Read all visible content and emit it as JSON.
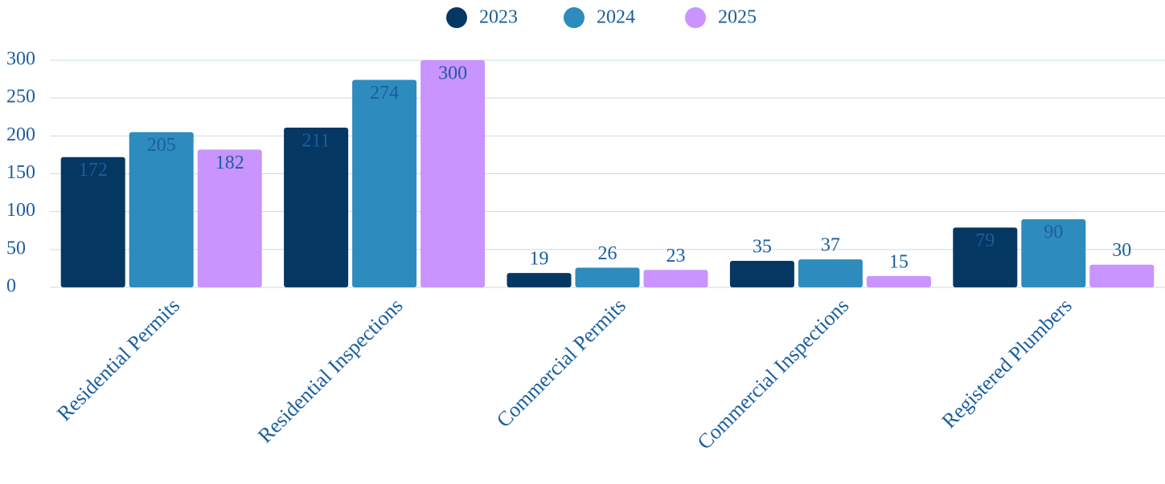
{
  "chart_data": {
    "type": "bar",
    "categories": [
      "Residential Permits",
      "Residential Inspections",
      "Commercial Permits",
      "Commercial Inspections",
      "Registered Plumbers"
    ],
    "series": [
      {
        "name": "2023",
        "color": "#053763",
        "values": [
          172,
          211,
          19,
          35,
          79
        ]
      },
      {
        "name": "2024",
        "color": "#2e8bbd",
        "values": [
          205,
          274,
          26,
          37,
          90
        ]
      },
      {
        "name": "2025",
        "color": "#c994fd",
        "values": [
          182,
          300,
          23,
          15,
          30
        ]
      }
    ],
    "ylim": [
      0,
      300
    ],
    "yticks": [
      0,
      50,
      100,
      150,
      200,
      250,
      300
    ],
    "grid": true,
    "legend": "top"
  }
}
